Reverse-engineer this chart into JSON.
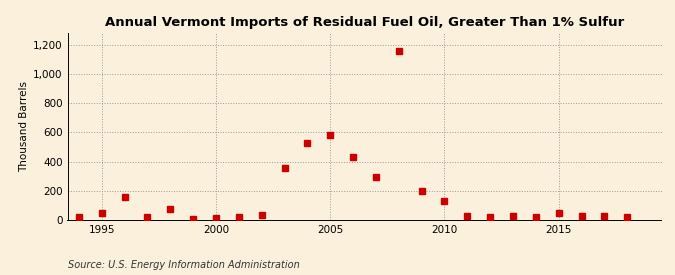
{
  "title": "Annual Vermont Imports of Residual Fuel Oil, Greater Than 1% Sulfur",
  "ylabel": "Thousand Barrels",
  "source": "Source: U.S. Energy Information Administration",
  "background_color": "#faf0dc",
  "marker_color": "#cc0000",
  "years": [
    1994,
    1995,
    1996,
    1997,
    1998,
    1999,
    2000,
    2001,
    2002,
    2003,
    2004,
    2005,
    2006,
    2007,
    2008,
    2009,
    2010,
    2011,
    2012,
    2013,
    2014,
    2015,
    2016,
    2017,
    2018
  ],
  "values": [
    22,
    50,
    155,
    18,
    75,
    8,
    15,
    22,
    35,
    355,
    530,
    580,
    430,
    295,
    1160,
    200,
    130,
    25,
    20,
    25,
    20,
    45,
    25,
    25,
    22
  ],
  "ylim": [
    0,
    1280
  ],
  "xlim": [
    1993.5,
    2019.5
  ],
  "yticks": [
    0,
    200,
    400,
    600,
    800,
    1000,
    1200
  ],
  "ytick_labels": [
    "0",
    "200",
    "400",
    "600",
    "800",
    "1,000",
    "1,200"
  ],
  "xtick_positions": [
    1995,
    2000,
    2005,
    2010,
    2015
  ],
  "vgrid_positions": [
    1995,
    2000,
    2005,
    2010,
    2015
  ],
  "title_fontsize": 9.5,
  "label_fontsize": 7.5,
  "source_fontsize": 7,
  "marker_size": 4
}
